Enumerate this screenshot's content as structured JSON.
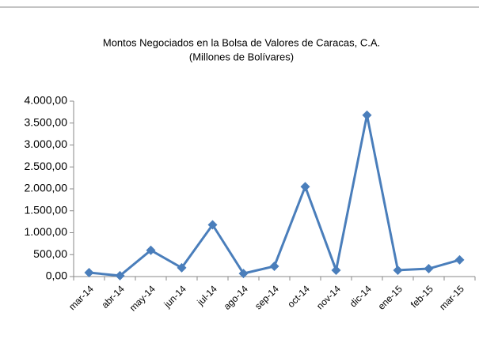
{
  "chart_data": {
    "type": "line",
    "title": "Montos Negociados en la Bolsa de Valores de Caracas, C.A.",
    "subtitle": "(Millones de Bolívares)",
    "categories": [
      "mar-14",
      "abr-14",
      "may-14",
      "jun-14",
      "jul-14",
      "ago-14",
      "sep-14",
      "oct-14",
      "nov-14",
      "dic-14",
      "ene-15",
      "feb-15",
      "mar-15"
    ],
    "series": [
      {
        "name": "Montos Negociados",
        "color": "#4a7ebb",
        "values": [
          90,
          20,
          600,
          200,
          1180,
          70,
          235,
          2050,
          145,
          3680,
          145,
          180,
          380
        ]
      }
    ],
    "ylim": [
      0,
      4000
    ],
    "yticks": [
      {
        "value": 0,
        "label": "0,00"
      },
      {
        "value": 500,
        "label": "500,00"
      },
      {
        "value": 1000,
        "label": "1.000,00"
      },
      {
        "value": 1500,
        "label": "1.500,00"
      },
      {
        "value": 2000,
        "label": "2.000,00"
      },
      {
        "value": 2500,
        "label": "2.500,00"
      },
      {
        "value": 3000,
        "label": "3.000,00"
      },
      {
        "value": 3500,
        "label": "3.500,00"
      },
      {
        "value": 4000,
        "label": "4.000,00"
      }
    ],
    "grid": false
  }
}
